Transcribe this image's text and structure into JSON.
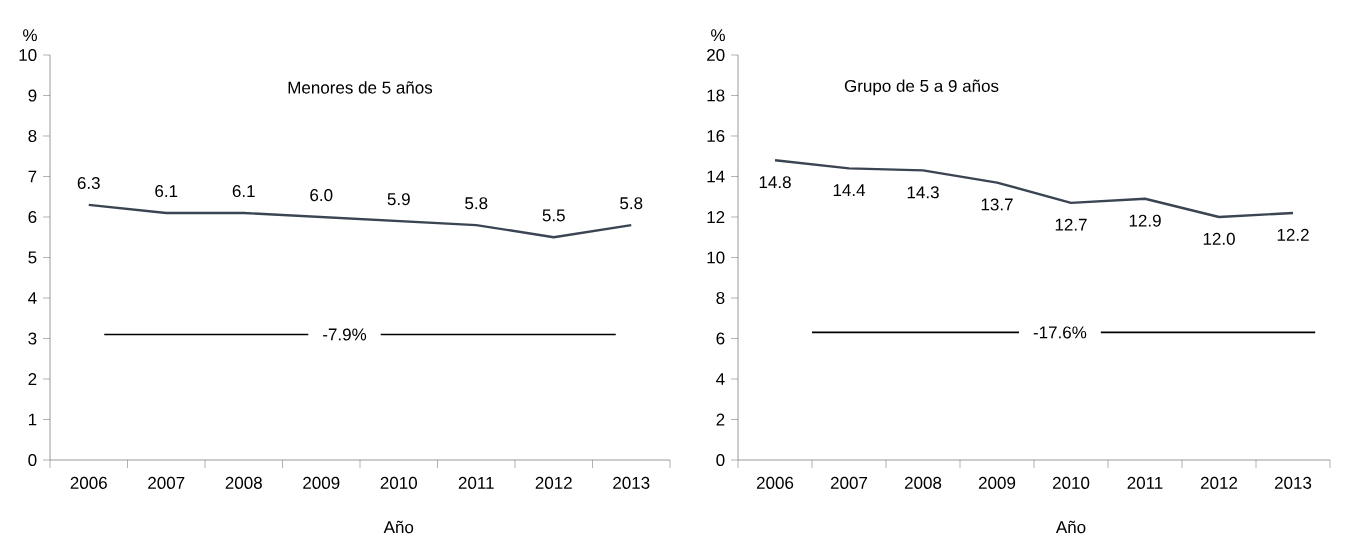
{
  "chart_data": [
    {
      "type": "line",
      "title": "Menores de 5 años",
      "xlabel": "Año",
      "ylabel": "%",
      "categories": [
        "2006",
        "2007",
        "2008",
        "2009",
        "2010",
        "2011",
        "2012",
        "2013"
      ],
      "series": [
        {
          "color": "#3a4452",
          "values": [
            6.3,
            6.1,
            6.1,
            6.0,
            5.9,
            5.8,
            5.5,
            5.8
          ],
          "value_labels": [
            "6.3",
            "6.1",
            "6.1",
            "6.0",
            "5.9",
            "5.8",
            "5.5",
            "5.8"
          ]
        }
      ],
      "ylim": [
        0,
        10
      ],
      "yticks": [
        0,
        1,
        2,
        3,
        4,
        5,
        6,
        7,
        8,
        9,
        10
      ],
      "ref_lines": [
        {
          "axis": "y",
          "value": 3.1,
          "color": "#000000"
        }
      ],
      "annotations": [
        "-7.9%"
      ]
    },
    {
      "type": "line",
      "title": "Grupo de 5 a 9 años",
      "xlabel": "Año",
      "ylabel": "%",
      "categories": [
        "2006",
        "2007",
        "2008",
        "2009",
        "2010",
        "2011",
        "2012",
        "2013"
      ],
      "series": [
        {
          "color": "#3a4452",
          "values": [
            14.8,
            14.4,
            14.3,
            13.7,
            12.7,
            12.9,
            12.0,
            12.2
          ],
          "value_labels": [
            "14.8",
            "14.4",
            "14.3",
            "13.7",
            "12.7",
            "12.9",
            "12.0",
            "12.2"
          ]
        }
      ],
      "ylim": [
        0,
        20
      ],
      "yticks": [
        0,
        2,
        4,
        6,
        8,
        10,
        12,
        14,
        16,
        18,
        20
      ],
      "ref_lines": [
        {
          "axis": "y",
          "value": 6.3,
          "color": "#000000"
        }
      ],
      "annotations": [
        "-17.6%"
      ]
    }
  ]
}
